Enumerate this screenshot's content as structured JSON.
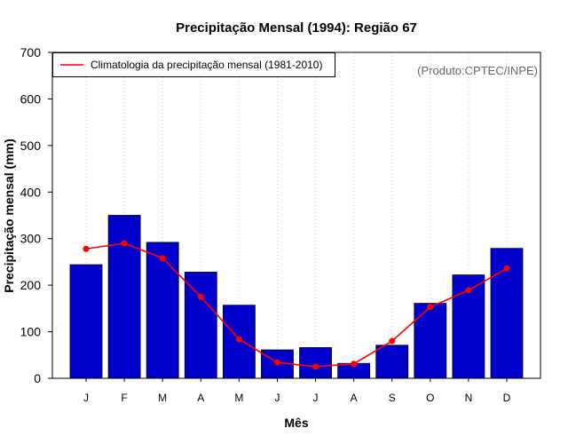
{
  "chart_data": {
    "type": "bar",
    "title": "Precipitação Mensal (1994): Região 67",
    "xlabel": "Mês",
    "ylabel": "Precipitação mensal (mm)",
    "ylim": [
      0,
      700
    ],
    "yticks": [
      0,
      100,
      200,
      300,
      400,
      500,
      600,
      700
    ],
    "categories": [
      "J",
      "F",
      "M",
      "A",
      "M",
      "J",
      "J",
      "A",
      "S",
      "O",
      "N",
      "D"
    ],
    "series": [
      {
        "name": "Precipitação mensal 1994",
        "type": "bar",
        "color": "#0000cc",
        "values": [
          244,
          350,
          292,
          228,
          157,
          61,
          66,
          32,
          71,
          161,
          222,
          279
        ]
      },
      {
        "name": "Climatologia da precipitação mensal (1981-2010)",
        "type": "line",
        "color": "#ff0000",
        "values": [
          278,
          290,
          258,
          175,
          84,
          34,
          25,
          31,
          80,
          153,
          189,
          236
        ]
      }
    ],
    "legend": {
      "position": "top-left",
      "entries": [
        "Climatologia da precipitação mensal (1981-2010)"
      ]
    },
    "source_note": "(Produto:CPTEC/INPE)",
    "grid": "vertical-dotted"
  }
}
